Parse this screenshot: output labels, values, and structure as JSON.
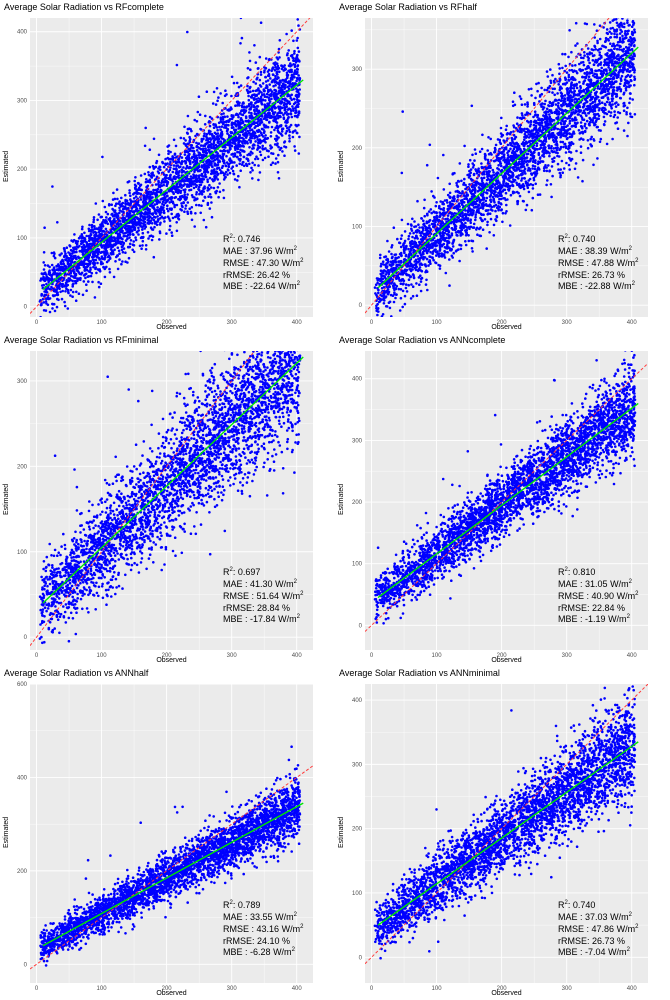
{
  "colors": {
    "panel_bg": "#ebebeb",
    "grid": "#ffffff",
    "points": "#0000ff",
    "fit_line": "#00e600",
    "identity_line": "#ff3b3b"
  },
  "chart_data": [
    {
      "type": "scatter",
      "title": "Average Solar Radiation vs RFcomplete",
      "xlabel": "Observed",
      "ylabel": "Estimated",
      "xlim": [
        -10,
        425
      ],
      "ylim": [
        -15,
        420
      ],
      "x_ticks": [
        0,
        100,
        200,
        300,
        400
      ],
      "y_ticks": [
        0,
        100,
        200,
        300,
        400
      ],
      "fit_line": {
        "x": [
          10,
          410
        ],
        "y": [
          25,
          330
        ]
      },
      "identity_line": true,
      "point_count": 3600,
      "point_spread": 32,
      "stats": {
        "r2_label": "R",
        "r2_value": "0.746",
        "mae_label": "MAE",
        "mae_value": "37.96",
        "rmse_label": "RMSE",
        "rmse_value": "47.30",
        "rrmse_label": "rRMSE",
        "rrmse_value": "26.42 %",
        "mbe_label": "MBE",
        "mbe_value": "-22.64",
        "unit": "W/m"
      }
    },
    {
      "type": "scatter",
      "title": "Average Solar Radiation vs RFhalf",
      "xlabel": "Observed",
      "ylabel": "Estimated",
      "xlim": [
        -10,
        425
      ],
      "ylim": [
        -15,
        365
      ],
      "x_ticks": [
        0,
        100,
        200,
        300,
        400
      ],
      "y_ticks": [
        0,
        100,
        200,
        300
      ],
      "fit_line": {
        "x": [
          10,
          410
        ],
        "y": [
          22,
          328
        ]
      },
      "identity_line": true,
      "point_count": 3600,
      "point_spread": 32,
      "stats": {
        "r2_label": "R",
        "r2_value": "0.740",
        "mae_label": "MAE",
        "mae_value": "38.39",
        "rmse_label": "RMSE",
        "rmse_value": "47.88",
        "rrmse_label": "rRMSE",
        "rrmse_value": "26.73 %",
        "mbe_label": "MBE",
        "mbe_value": "-22.88",
        "unit": "W/m"
      }
    },
    {
      "type": "scatter",
      "title": "Average Solar Radiation vs RFminimal",
      "xlabel": "Observed",
      "ylabel": "Estimated",
      "xlim": [
        -10,
        425
      ],
      "ylim": [
        -15,
        335
      ],
      "x_ticks": [
        0,
        100,
        200,
        300,
        400
      ],
      "y_ticks": [
        0,
        100,
        200,
        300
      ],
      "fit_line": {
        "x": [
          10,
          410
        ],
        "y": [
          40,
          328
        ]
      },
      "identity_line": true,
      "point_count": 3600,
      "point_spread": 38,
      "stats": {
        "r2_label": "R",
        "r2_value": "0.697",
        "mae_label": "MAE",
        "mae_value": "41.30",
        "rmse_label": "RMSE",
        "rmse_value": "51.64",
        "rrmse_label": "rRMSE",
        "rrmse_value": "28.84 %",
        "mbe_label": "MBE",
        "mbe_value": "-17.84",
        "unit": "W/m"
      }
    },
    {
      "type": "scatter",
      "title": "Average Solar Radiation vs ANNcomplete",
      "xlabel": "Observed",
      "ylabel": "Estimated",
      "xlim": [
        -10,
        425
      ],
      "ylim": [
        -40,
        445
      ],
      "x_ticks": [
        0,
        100,
        200,
        300,
        400
      ],
      "y_ticks": [
        0,
        100,
        200,
        300,
        400
      ],
      "fit_line": {
        "x": [
          10,
          410
        ],
        "y": [
          45,
          360
        ]
      },
      "identity_line": true,
      "point_count": 3600,
      "point_spread": 30,
      "stats": {
        "r2_label": "R",
        "r2_value": "0.810",
        "mae_label": "MAE",
        "mae_value": "31.05",
        "rmse_label": "RMSE",
        "rmse_value": "40.90",
        "rrmse_label": "rRMSE",
        "rrmse_value": "22.84 %",
        "mbe_label": "MBE",
        "mbe_value": "-1.19",
        "unit": "W/m"
      }
    },
    {
      "type": "scatter",
      "title": "Average Solar Radiation vs ANNhalf",
      "xlabel": "Observed",
      "ylabel": "Estimated",
      "xlim": [
        -10,
        425
      ],
      "ylim": [
        -40,
        600
      ],
      "x_ticks": [
        0,
        100,
        200,
        300,
        400
      ],
      "y_ticks": [
        0,
        200,
        400,
        600
      ],
      "fit_line": {
        "x": [
          10,
          410
        ],
        "y": [
          40,
          345
        ]
      },
      "identity_line": true,
      "point_count": 3600,
      "point_spread": 28,
      "stats": {
        "r2_label": "R",
        "r2_value": "0.789",
        "mae_label": "MAE",
        "mae_value": "33.55",
        "rmse_label": "RMSE",
        "rmse_value": "43.16",
        "rrmse_label": "rRMSE",
        "rrmse_value": "24.10 %",
        "mbe_label": "MBE",
        "mbe_value": "-6.28",
        "unit": "W/m"
      }
    },
    {
      "type": "scatter",
      "title": "Average Solar Radiation vs ANNminimal",
      "xlabel": "Observed",
      "ylabel": "Estimated",
      "xlim": [
        -10,
        425
      ],
      "ylim": [
        -40,
        425
      ],
      "x_ticks": [
        0,
        100,
        200,
        300,
        400
      ],
      "y_ticks": [
        0,
        100,
        200,
        300,
        400
      ],
      "fit_line": {
        "x": [
          10,
          410
        ],
        "y": [
          50,
          335
        ]
      },
      "identity_line": true,
      "point_count": 3600,
      "point_spread": 34,
      "stats": {
        "r2_label": "R",
        "r2_value": "0.740",
        "mae_label": "MAE",
        "mae_value": "37.03",
        "rmse_label": "RMSE",
        "rmse_value": "47.86",
        "rrmse_label": "rRMSE",
        "rrmse_value": "26.73 %",
        "mbe_label": "MBE",
        "mbe_value": "-7.04",
        "unit": "W/m"
      }
    }
  ]
}
